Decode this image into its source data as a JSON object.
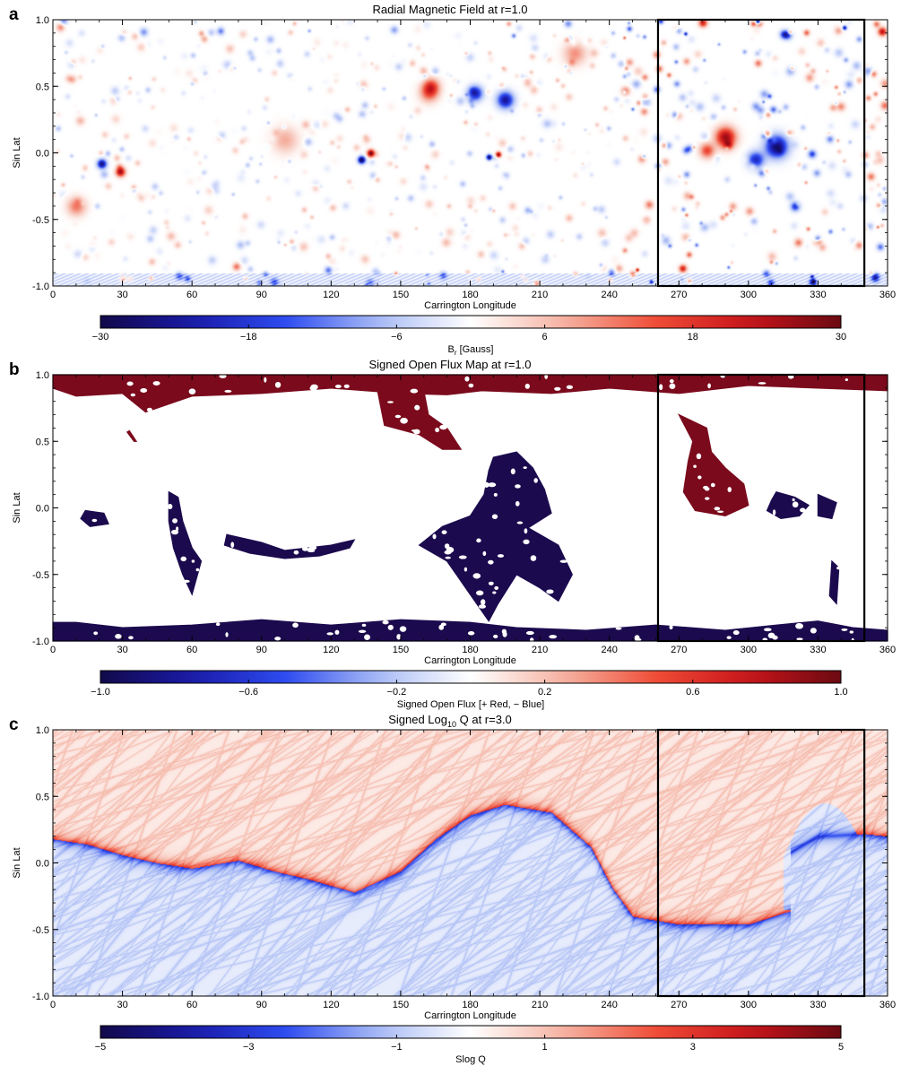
{
  "chart_data": [
    {
      "type": "heatmap",
      "panel_label": "a",
      "title": "Radial Magnetic Field at r=1.0",
      "xlabel": "Carrington Longitude",
      "ylabel": "Sin Lat",
      "xlim": [
        0,
        360
      ],
      "ylim": [
        -1.0,
        1.0
      ],
      "xticks": [
        0,
        30,
        60,
        90,
        120,
        150,
        180,
        210,
        240,
        270,
        300,
        330,
        360
      ],
      "yticks": [
        "-1.0",
        "-0.5",
        "0.0",
        "0.5",
        "1.0"
      ],
      "highlight_box": {
        "x": [
          261,
          350
        ],
        "y": [
          -1.0,
          1.0
        ]
      },
      "colorbar": {
        "label_main": "B",
        "label_sub": "r",
        "label_rest": " [Gauss]",
        "ticks": [
          "-30",
          "-18",
          "-6",
          "6",
          "18",
          "30"
        ],
        "range": [
          -30,
          30
        ],
        "colors": [
          "#120a4a",
          "#1a1aa8",
          "#2e4cf0",
          "#a9bbf5",
          "#ffffff",
          "#f5b3a3",
          "#ef4d37",
          "#c8141a",
          "#6b0a12"
        ]
      },
      "features": [
        {
          "x": 312,
          "y": 0.05,
          "strength": -28,
          "r": 12
        },
        {
          "x": 290,
          "y": 0.12,
          "strength": 26,
          "r": 11
        },
        {
          "x": 303,
          "y": -0.05,
          "strength": -20,
          "r": 9
        },
        {
          "x": 282,
          "y": 0.02,
          "strength": 16,
          "r": 8
        },
        {
          "x": 195,
          "y": 0.4,
          "strength": -24,
          "r": 9
        },
        {
          "x": 182,
          "y": 0.45,
          "strength": -22,
          "r": 8
        },
        {
          "x": 163,
          "y": 0.5,
          "strength": 16,
          "r": 9
        },
        {
          "x": 133,
          "y": -0.05,
          "strength": -30,
          "r": 4
        },
        {
          "x": 137,
          "y": 0.0,
          "strength": 30,
          "r": 4
        },
        {
          "x": 162,
          "y": 0.45,
          "strength": 12,
          "r": 10
        },
        {
          "x": 188,
          "y": -0.03,
          "strength": -28,
          "r": 3
        },
        {
          "x": 192,
          "y": -0.01,
          "strength": 28,
          "r": 3
        },
        {
          "x": 21,
          "y": -0.08,
          "strength": -26,
          "r": 5
        },
        {
          "x": 29,
          "y": -0.14,
          "strength": 26,
          "r": 5
        },
        {
          "x": 100,
          "y": 0.1,
          "strength": 8,
          "r": 14
        },
        {
          "x": 225,
          "y": 0.75,
          "strength": 10,
          "r": 12
        },
        {
          "x": 320,
          "y": -0.4,
          "strength": -18,
          "r": 5
        },
        {
          "x": 10,
          "y": -0.4,
          "strength": 12,
          "r": 10
        }
      ]
    },
    {
      "type": "heatmap",
      "panel_label": "b",
      "title": "Signed Open Flux Map at r=1.0",
      "xlabel": "Carrington Longitude",
      "ylabel": "Sin Lat",
      "xlim": [
        0,
        360
      ],
      "ylim": [
        -1.0,
        1.0
      ],
      "xticks": [
        0,
        30,
        60,
        90,
        120,
        150,
        180,
        210,
        240,
        270,
        300,
        330,
        360
      ],
      "yticks": [
        "-1.0",
        "-0.5",
        "0.0",
        "0.5",
        "1.0"
      ],
      "highlight_box": {
        "x": [
          261,
          350
        ],
        "y": [
          -1.0,
          1.0
        ]
      },
      "colorbar": {
        "label": "Signed Open Flux [+ Red, − Blue]",
        "ticks": [
          "-1.0",
          "-0.6",
          "-0.2",
          "0.2",
          "0.6",
          "1.0"
        ],
        "range": [
          -1.0,
          1.0
        ],
        "colors": [
          "#120a4a",
          "#1a1aa8",
          "#2e4cf0",
          "#a9bbf5",
          "#ffffff",
          "#f5b3a3",
          "#ef4d37",
          "#c8141a",
          "#6b0a12"
        ]
      },
      "regions": [
        {
          "sign": 1,
          "polygon": [
            [
              0,
              1.0
            ],
            [
              360,
              1.0
            ],
            [
              360,
              0.88
            ],
            [
              330,
              0.9
            ],
            [
              300,
              0.92
            ],
            [
              270,
              0.86
            ],
            [
              240,
              0.9
            ],
            [
              215,
              0.86
            ],
            [
              185,
              0.88
            ],
            [
              170,
              0.85
            ],
            [
              150,
              0.86
            ],
            [
              120,
              0.9
            ],
            [
              90,
              0.86
            ],
            [
              60,
              0.84
            ],
            [
              40,
              0.72
            ],
            [
              30,
              0.86
            ],
            [
              10,
              0.84
            ],
            [
              0,
              0.9
            ]
          ]
        },
        {
          "sign": 1,
          "polygon": [
            [
              140,
              0.88
            ],
            [
              160,
              0.88
            ],
            [
              162,
              0.7
            ],
            [
              170,
              0.6
            ],
            [
              176,
              0.44
            ],
            [
              168,
              0.44
            ],
            [
              158,
              0.55
            ],
            [
              143,
              0.62
            ]
          ]
        },
        {
          "sign": 1,
          "polygon": [
            [
              270,
              0.7
            ],
            [
              276,
              0.5
            ],
            [
              274,
              0.35
            ],
            [
              272,
              0.12
            ],
            [
              277,
              -0.02
            ],
            [
              290,
              -0.06
            ],
            [
              300,
              0.02
            ],
            [
              298,
              0.18
            ],
            [
              290,
              0.3
            ],
            [
              284,
              0.42
            ],
            [
              282,
              0.6
            ]
          ]
        },
        {
          "sign": 1,
          "polygon": [
            [
              33,
              0.58
            ],
            [
              36,
              0.5
            ],
            [
              35,
              0.5
            ],
            [
              32,
              0.57
            ]
          ]
        },
        {
          "sign": -1,
          "polygon": [
            [
              0,
              -1.0
            ],
            [
              360,
              -1.0
            ],
            [
              360,
              -0.92
            ],
            [
              345,
              -0.9
            ],
            [
              330,
              -0.85
            ],
            [
              312,
              -0.88
            ],
            [
              290,
              -0.92
            ],
            [
              260,
              -0.88
            ],
            [
              230,
              -0.92
            ],
            [
              200,
              -0.9
            ],
            [
              180,
              -0.86
            ],
            [
              150,
              -0.84
            ],
            [
              120,
              -0.88
            ],
            [
              90,
              -0.84
            ],
            [
              60,
              -0.88
            ],
            [
              30,
              -0.9
            ],
            [
              10,
              -0.86
            ],
            [
              0,
              -0.86
            ]
          ]
        },
        {
          "sign": -1,
          "polygon": [
            [
              190,
              0.38
            ],
            [
              200,
              0.42
            ],
            [
              207,
              0.3
            ],
            [
              212,
              0.14
            ],
            [
              215,
              -0.04
            ],
            [
              205,
              -0.15
            ],
            [
              218,
              -0.28
            ],
            [
              224,
              -0.5
            ],
            [
              218,
              -0.7
            ],
            [
              210,
              -0.6
            ],
            [
              200,
              -0.5
            ],
            [
              192,
              -0.72
            ],
            [
              188,
              -0.85
            ],
            [
              178,
              -0.6
            ],
            [
              170,
              -0.4
            ],
            [
              158,
              -0.28
            ],
            [
              168,
              -0.14
            ],
            [
              180,
              -0.06
            ],
            [
              186,
              0.1
            ],
            [
              188,
              0.28
            ]
          ]
        },
        {
          "sign": -1,
          "polygon": [
            [
              312,
              0.12
            ],
            [
              320,
              0.08
            ],
            [
              326,
              0.02
            ],
            [
              322,
              -0.06
            ],
            [
              314,
              -0.08
            ],
            [
              308,
              -0.02
            ],
            [
              310,
              0.06
            ]
          ]
        },
        {
          "sign": -1,
          "polygon": [
            [
              330,
              0.1
            ],
            [
              338,
              0.04
            ],
            [
              336,
              -0.08
            ],
            [
              330,
              -0.06
            ]
          ]
        },
        {
          "sign": -1,
          "polygon": [
            [
              14,
              -0.02
            ],
            [
              22,
              -0.04
            ],
            [
              24,
              -0.12
            ],
            [
              16,
              -0.14
            ],
            [
              12,
              -0.08
            ]
          ]
        },
        {
          "sign": -1,
          "polygon": [
            [
              50,
              0.12
            ],
            [
              54,
              0.08
            ],
            [
              56,
              -0.1
            ],
            [
              60,
              -0.3
            ],
            [
              64,
              -0.4
            ],
            [
              60,
              -0.65
            ],
            [
              56,
              -0.5
            ],
            [
              52,
              -0.3
            ],
            [
              50,
              -0.1
            ]
          ]
        },
        {
          "sign": -1,
          "polygon": [
            [
              75,
              -0.2
            ],
            [
              90,
              -0.26
            ],
            [
              100,
              -0.32
            ],
            [
              110,
              -0.3
            ],
            [
              120,
              -0.28
            ],
            [
              130,
              -0.24
            ],
            [
              128,
              -0.3
            ],
            [
              115,
              -0.36
            ],
            [
              100,
              -0.38
            ],
            [
              85,
              -0.34
            ],
            [
              74,
              -0.28
            ]
          ]
        },
        {
          "sign": -1,
          "polygon": [
            [
              336,
              -0.4
            ],
            [
              339,
              -0.45
            ],
            [
              338,
              -0.72
            ],
            [
              335,
              -0.66
            ]
          ]
        }
      ]
    },
    {
      "type": "heatmap",
      "panel_label": "c",
      "title_main": "Signed Log",
      "title_sub": "10",
      "title_rest": " Q at r=3.0",
      "xlabel": "Carrington Longitude",
      "ylabel": "Sin Lat",
      "xlim": [
        0,
        360
      ],
      "ylim": [
        -1.0,
        1.0
      ],
      "xticks": [
        0,
        30,
        60,
        90,
        120,
        150,
        180,
        210,
        240,
        270,
        300,
        330,
        360
      ],
      "yticks": [
        "-1.0",
        "-0.5",
        "0.0",
        "0.5",
        "1.0"
      ],
      "highlight_box": {
        "x": [
          261,
          350
        ],
        "y": [
          -1.0,
          1.0
        ]
      },
      "colorbar": {
        "label": "Slog Q",
        "ticks": [
          "-5",
          "-3",
          "-1",
          "1",
          "3",
          "5"
        ],
        "range": [
          -5,
          5
        ],
        "colors": [
          "#120a4a",
          "#1a1aa8",
          "#2e4cf0",
          "#a9bbf5",
          "#ffffff",
          "#f5b3a3",
          "#ef4d37",
          "#c8141a",
          "#6b0a12"
        ]
      },
      "polarity_inversion_line": [
        [
          0,
          0.18
        ],
        [
          15,
          0.14
        ],
        [
          30,
          0.06
        ],
        [
          45,
          0.0
        ],
        [
          60,
          -0.04
        ],
        [
          80,
          0.02
        ],
        [
          95,
          -0.06
        ],
        [
          110,
          -0.12
        ],
        [
          130,
          -0.22
        ],
        [
          150,
          -0.06
        ],
        [
          165,
          0.18
        ],
        [
          180,
          0.36
        ],
        [
          195,
          0.44
        ],
        [
          215,
          0.38
        ],
        [
          232,
          0.12
        ],
        [
          241,
          -0.18
        ],
        [
          250,
          -0.4
        ],
        [
          270,
          -0.46
        ],
        [
          300,
          -0.46
        ],
        [
          318,
          -0.36
        ],
        [
          316,
          -0.15
        ],
        [
          318,
          0.08
        ],
        [
          330,
          0.2
        ],
        [
          350,
          0.22
        ],
        [
          360,
          0.2
        ]
      ],
      "magnitude_scale": 2.6
    }
  ]
}
